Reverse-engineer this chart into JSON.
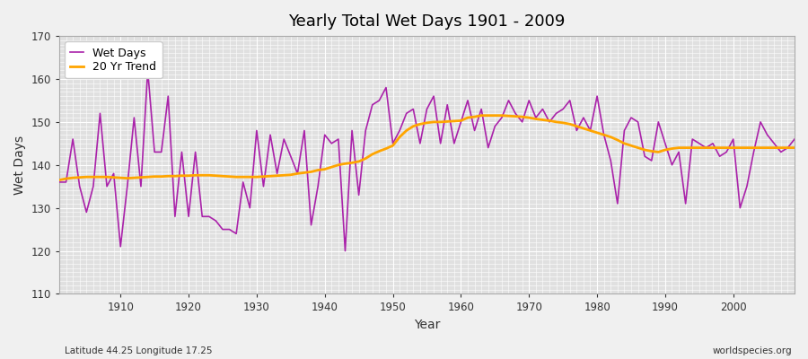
{
  "title": "Yearly Total Wet Days 1901 - 2009",
  "xlabel": "Year",
  "ylabel": "Wet Days",
  "footnote_left": "Latitude 44.25 Longitude 17.25",
  "footnote_right": "worldspecies.org",
  "ylim": [
    110,
    170
  ],
  "yticks": [
    110,
    120,
    130,
    140,
    150,
    160,
    170
  ],
  "xlim": [
    1901,
    2009
  ],
  "wet_days_color": "#aa22aa",
  "trend_color": "#ffa500",
  "bg_color": "#f0f0f0",
  "plot_bg_color": "#e0e0e0",
  "grid_color": "#ffffff",
  "wet_days": [
    136,
    136,
    146,
    135,
    129,
    135,
    152,
    135,
    138,
    121,
    135,
    151,
    135,
    162,
    143,
    143,
    156,
    128,
    143,
    128,
    143,
    128,
    128,
    127,
    125,
    125,
    124,
    136,
    130,
    148,
    135,
    147,
    138,
    146,
    142,
    138,
    148,
    126,
    135,
    147,
    145,
    146,
    120,
    148,
    133,
    148,
    154,
    155,
    158,
    145,
    148,
    152,
    153,
    145,
    153,
    156,
    145,
    154,
    145,
    150,
    155,
    148,
    153,
    144,
    149,
    151,
    155,
    152,
    150,
    155,
    151,
    153,
    150,
    152,
    153,
    155,
    148,
    151,
    148,
    156,
    147,
    141,
    131,
    148,
    151,
    150,
    142,
    141,
    150,
    145,
    140,
    143,
    131,
    146,
    145,
    144,
    145,
    142,
    143,
    146,
    130,
    135,
    143,
    150,
    147,
    145,
    143,
    144,
    146
  ],
  "trend": [
    136.5,
    136.8,
    137.0,
    137.1,
    137.2,
    137.2,
    137.2,
    137.2,
    137.1,
    137.0,
    136.9,
    137.0,
    137.1,
    137.2,
    137.3,
    137.3,
    137.4,
    137.4,
    137.5,
    137.5,
    137.6,
    137.6,
    137.6,
    137.5,
    137.4,
    137.3,
    137.2,
    137.2,
    137.2,
    137.2,
    137.3,
    137.4,
    137.5,
    137.6,
    137.7,
    138.0,
    138.2,
    138.4,
    138.8,
    139.0,
    139.5,
    140.0,
    140.3,
    140.5,
    140.8,
    141.5,
    142.5,
    143.2,
    143.8,
    144.5,
    146.5,
    148.0,
    149.0,
    149.5,
    149.8,
    150.0,
    150.0,
    150.1,
    150.2,
    150.3,
    151.0,
    151.2,
    151.5,
    151.5,
    151.5,
    151.5,
    151.4,
    151.3,
    151.2,
    151.0,
    150.7,
    150.5,
    150.3,
    150.0,
    149.8,
    149.5,
    149.0,
    148.5,
    148.0,
    147.5,
    147.0,
    146.5,
    145.8,
    145.0,
    144.5,
    144.0,
    143.5,
    143.2,
    143.0,
    143.5,
    143.8,
    144.0,
    144.0,
    144.0,
    144.0,
    144.0,
    144.0,
    144.0,
    144.0,
    144.0,
    144.0,
    144.0,
    144.0,
    144.0,
    144.0,
    144.0,
    144.0,
    144.0,
    144.0
  ]
}
